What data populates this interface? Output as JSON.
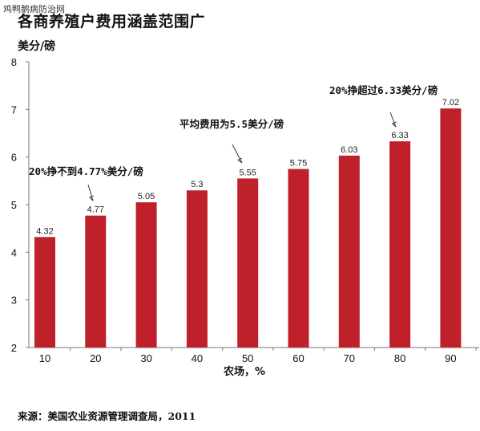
{
  "watermark": "鸡鸭鹅病防治网",
  "chart_data": {
    "type": "bar",
    "title": "各商养殖户费用涵盖范围广",
    "ylabel": "美分/磅",
    "xlabel": "农场，%",
    "ylim": [
      2,
      8
    ],
    "yticks": [
      2,
      3,
      4,
      5,
      6,
      7,
      8
    ],
    "categories": [
      "10",
      "20",
      "30",
      "40",
      "50",
      "60",
      "70",
      "80",
      "90"
    ],
    "values": [
      4.32,
      4.77,
      5.05,
      5.3,
      5.55,
      5.75,
      6.03,
      6.33,
      7.02
    ],
    "value_labels": [
      "4.32",
      "4.77",
      "5.05",
      "5.3",
      "5.55",
      "5.75",
      "6.03",
      "6.33",
      "7.02"
    ],
    "bar_color": "#c0202a",
    "grid": false,
    "annotations": [
      {
        "text": "20%挣不到4.77%美分/磅",
        "category": "20"
      },
      {
        "text": "平均费用为5.5美分/磅",
        "category": "50"
      },
      {
        "text": "20%挣超过6.33美分/磅",
        "category": "80"
      }
    ],
    "source": "来源：美国农业资源管理调查局，2011"
  }
}
